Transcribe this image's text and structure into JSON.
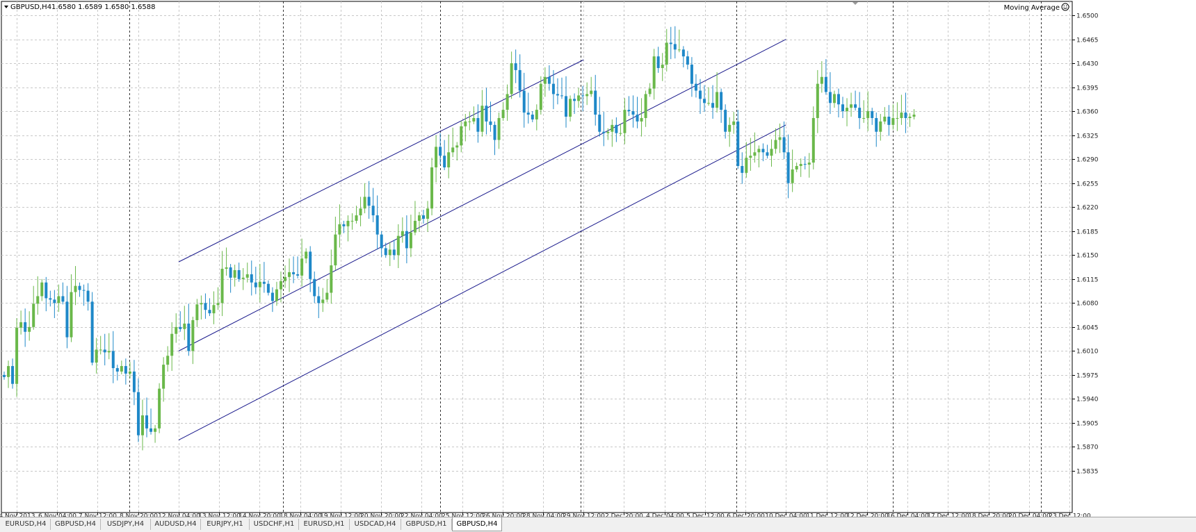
{
  "header": {
    "symbol_label": "GBPUSD,H4",
    "ohlc_text": "1.6580 1.6589 1.6580 1.6588",
    "indicator_label": "Moving Average"
  },
  "colors": {
    "bull": "#6ab84a",
    "bear": "#1e88c8",
    "grid": "#c8c8c8",
    "channel": "#1a1a8c",
    "axis_text": "#222222"
  },
  "tabs": [
    {
      "label": "EURUSD,H4",
      "active": false
    },
    {
      "label": "GBPUSD,H4",
      "active": false
    },
    {
      "label": "USDJPY,H4",
      "active": false
    },
    {
      "label": "AUDUSD,H4",
      "active": false
    },
    {
      "label": "EURJPY,H1",
      "active": false
    },
    {
      "label": "USDCHF,H1",
      "active": false
    },
    {
      "label": "EURUSD,H1",
      "active": false
    },
    {
      "label": "USDCAD,H4",
      "active": false
    },
    {
      "label": "GBPUSD,H1",
      "active": false
    },
    {
      "label": "GBPUSD,H4",
      "active": true
    }
  ],
  "chart_data": {
    "type": "candlestick",
    "symbol": "GBPUSD",
    "timeframe": "H4",
    "ylim": [
      1.5835,
      1.65
    ],
    "y_ticks": [
      "1.6500",
      "1.6465",
      "1.6430",
      "1.6395",
      "1.6360",
      "1.6325",
      "1.6290",
      "1.6255",
      "1.6220",
      "1.6185",
      "1.6150",
      "1.6115",
      "1.6080",
      "1.6045",
      "1.6010",
      "1.5975",
      "1.5940",
      "1.5905",
      "1.5870",
      "1.5835"
    ],
    "x_ticks": [
      "4 Nov 2013",
      "6 Nov 04:00",
      "7 Nov 12:00",
      "8 Nov 20:00",
      "12 Nov 04:00",
      "13 Nov 12:00",
      "14 Nov 20:00",
      "18 Nov 04:00",
      "19 Nov 12:00",
      "20 Nov 20:00",
      "22 Nov 04:00",
      "25 Nov 12:00",
      "26 Nov 20:00",
      "28 Nov 04:00",
      "29 Nov 12:00",
      "2 Dec 20:00",
      "4 Dec 04:00",
      "5 Dec 12:00",
      "6 Dec 20:00",
      "10 Dec 04:00",
      "11 Dec 12:00",
      "12 Dec 20:00",
      "16 Dec 04:00",
      "17 Dec 12:00",
      "18 Dec 20:00",
      "20 Dec 04:00",
      "23 Dec 12:00"
    ],
    "grid": true,
    "close_series": [
      1.5972,
      1.5988,
      1.5962,
      1.6044,
      1.6052,
      1.6038,
      1.6045,
      1.6079,
      1.609,
      1.611,
      1.6087,
      1.6085,
      1.608,
      1.609,
      1.6082,
      1.603,
      1.6096,
      1.6105,
      1.6099,
      1.6098,
      1.6082,
      1.5993,
      1.6012,
      1.6012,
      1.6008,
      1.601,
      1.5985,
      1.598,
      1.5988,
      1.5977,
      1.598,
      1.595,
      1.5887,
      1.5916,
      1.5897,
      1.5892,
      1.5897,
      1.5955,
      1.599,
      1.6003,
      1.6035,
      1.6045,
      1.6042,
      1.605,
      1.601,
      1.6055,
      1.6078,
      1.608,
      1.607,
      1.6065,
      1.6077,
      1.608,
      1.613,
      1.6132,
      1.6117,
      1.6128,
      1.6115,
      1.6117,
      1.6122,
      1.611,
      1.6103,
      1.6111,
      1.6108,
      1.6095,
      1.6083,
      1.61,
      1.6112,
      1.6118,
      1.6125,
      1.6122,
      1.612,
      1.6145,
      1.6155,
      1.6115,
      1.609,
      1.608,
      1.6085,
      1.6095,
      1.6135,
      1.618,
      1.6195,
      1.6192,
      1.62,
      1.62,
      1.6208,
      1.6218,
      1.6235,
      1.6222,
      1.6208,
      1.618,
      1.616,
      1.615,
      1.6158,
      1.615,
      1.6178,
      1.6185,
      1.616,
      1.6183,
      1.62,
      1.6208,
      1.6203,
      1.6218,
      1.6278,
      1.6308,
      1.6295,
      1.6278,
      1.63,
      1.6307,
      1.631,
      1.6338,
      1.6345,
      1.6345,
      1.635,
      1.633,
      1.6368,
      1.6345,
      1.634,
      1.6318,
      1.635,
      1.6362,
      1.6385,
      1.643,
      1.642,
      1.639,
      1.6358,
      1.6355,
      1.6348,
      1.6362,
      1.64,
      1.641,
      1.64,
      1.6385,
      1.6383,
      1.6382,
      1.6352,
      1.6378,
      1.6375,
      1.6383,
      1.6382,
      1.6385,
      1.639,
      1.6355,
      1.633,
      1.6328,
      1.633,
      1.634,
      1.6328,
      1.6328,
      1.6362,
      1.636,
      1.6355,
      1.6345,
      1.635,
      1.6385,
      1.6393,
      1.644,
      1.6423,
      1.6428,
      1.646,
      1.6458,
      1.645,
      1.645,
      1.644,
      1.6428,
      1.64,
      1.639,
      1.6378,
      1.6372,
      1.6372,
      1.6365,
      1.6388,
      1.6362,
      1.633,
      1.634,
      1.6345,
      1.628,
      1.627,
      1.6292,
      1.6295,
      1.63,
      1.6305,
      1.63,
      1.6295,
      1.6305,
      1.6318,
      1.6322,
      1.63,
      1.6255,
      1.6275,
      1.628,
      1.6283,
      1.6282,
      1.6285,
      1.635,
      1.64,
      1.641,
      1.6388,
      1.6372,
      1.6385,
      1.637,
      1.636,
      1.6365,
      1.637,
      1.6365,
      1.635,
      1.635,
      1.636,
      1.635,
      1.633,
      1.6345,
      1.6352,
      1.634,
      1.635,
      1.635,
      1.6358,
      1.635,
      1.6352,
      1.6355
    ],
    "open_first": 1.5975,
    "channel_lines": [
      {
        "label": "upper",
        "from": [
          "12 Nov 04:00",
          1.614
        ],
        "to": [
          "29 Nov 12:00",
          1.6435
        ]
      },
      {
        "label": "middle",
        "from": [
          "12 Nov 04:00",
          1.601
        ],
        "to": [
          "10 Dec 04:00",
          1.6465
        ]
      },
      {
        "label": "lower",
        "from": [
          "12 Nov 04:00",
          1.588
        ],
        "to": [
          "10 Dec 04:00",
          1.634
        ]
      }
    ]
  }
}
